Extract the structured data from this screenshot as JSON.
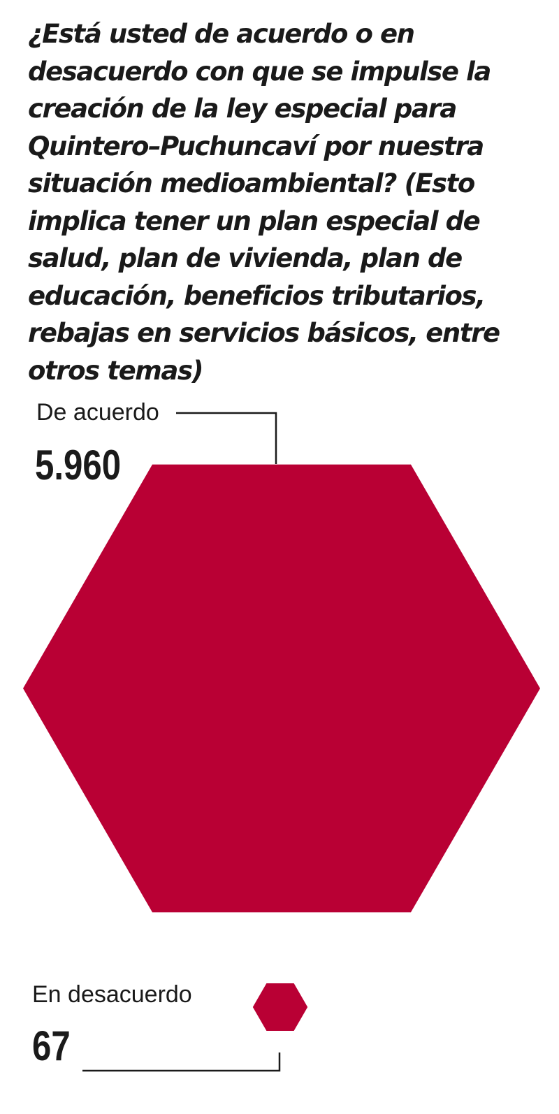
{
  "question": "¿Está usted de acuerdo o en desacuerdo con que se impulse la creación de la ley especial para Quintero–Puchuncaví por nuestra situación medioambiental? (Esto implica tener un plan especial de salud, plan de vivienda, plan de educación, beneficios tributarios, rebajas en servicios básicos, entre otros temas)",
  "chart_data": {
    "type": "area",
    "shape": "hexagon",
    "title": "¿Está usted de acuerdo o en desacuerdo con que se impulse la creación de la ley especial para Quintero–Puchuncaví por nuestra situación medioambiental? (Esto implica tener un plan especial de salud, plan de vivienda, plan de educación, beneficios tributarios, rebajas en servicios básicos, entre otros temas)",
    "categories": [
      "De acuerdo",
      "En desacuerdo"
    ],
    "values": [
      5960,
      67
    ],
    "value_labels": [
      "5.960",
      "67"
    ],
    "color": "#b90034",
    "grid": false
  }
}
